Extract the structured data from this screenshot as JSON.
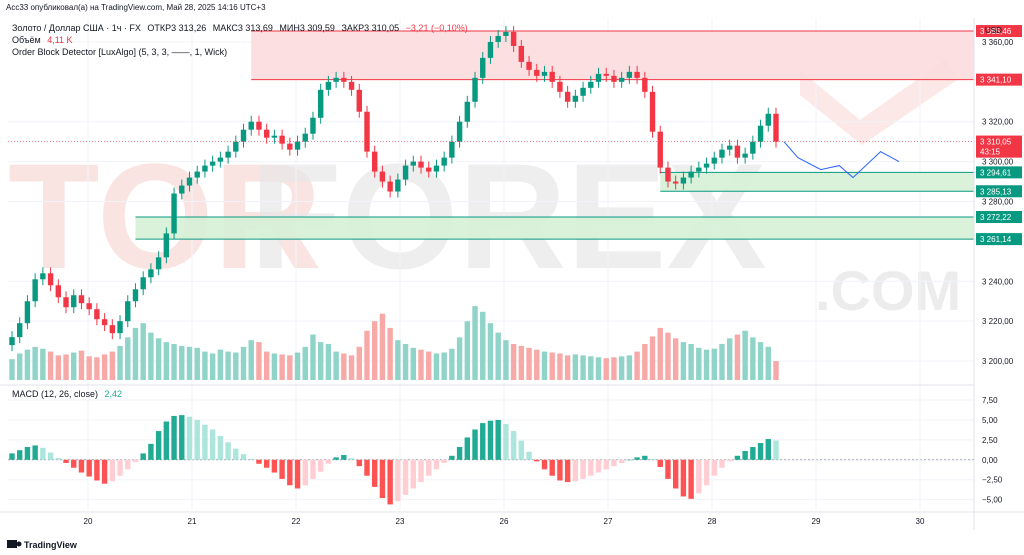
{
  "header": {
    "published_line": "Acc33 опубликовал(а) на TradingView.com, Май 28, 2025 14:16 UTC+3",
    "symbol": "Золото / Доллар США · 1ч · FX",
    "open": "ОТКР3 313,26",
    "high": "МАКС3 313,69",
    "low": "МИН3 309,59",
    "close": "ЗАКР3 310,05",
    "change": "−3,21 (−0,10%)",
    "volume_label": "Объём",
    "volume_value": "4,11 K",
    "indicator": "Order Block Detector [LuxAlgo] (5, 3, 3, ——, 1, Wick)"
  },
  "currency": "USD",
  "watermark": {
    "left": "TOR",
    "right": "FOREX",
    "suffix": ".COM"
  },
  "footer": {
    "brand": "TradingView"
  },
  "price_labels": [
    {
      "text": "3 365,46",
      "value": 3365.46,
      "color": "#f23645"
    },
    {
      "text": "3 341,10",
      "value": 3341.1,
      "color": "#f23645"
    },
    {
      "text": "3 310,05",
      "value": 3310.05,
      "color": "#f23645"
    },
    {
      "text": "43:15",
      "value": 3305.0,
      "color": "#f23645"
    },
    {
      "text": "3 294,61",
      "value": 3294.61,
      "color": "#089981"
    },
    {
      "text": "3 285,13",
      "value": 3285.13,
      "color": "#089981"
    },
    {
      "text": "3 272,22",
      "value": 3272.22,
      "color": "#089981"
    },
    {
      "text": "3 261,14",
      "value": 3261.14,
      "color": "#089981"
    }
  ],
  "macd": {
    "label": "MACD (12, 26, close)",
    "value": "2,42"
  },
  "colors": {
    "up": "#089981",
    "down": "#f23645",
    "vol_up": "#8fd3c9",
    "vol_down": "#f7a9a7",
    "hist_up_strong": "#22ab94",
    "hist_up_weak": "#ace5dc",
    "hist_down_strong": "#ff5252",
    "hist_down_weak": "#ffcdd2",
    "zone_red": "#fcdcdd",
    "zone_green": "#d6f0d6",
    "projection": "#2962ff"
  },
  "chart_data": {
    "type": "candlestick",
    "x_tick_labels": [
      "20",
      "21",
      "22",
      "23",
      "26",
      "27",
      "28",
      "29",
      "30"
    ],
    "price_axis": {
      "ticks": [
        3360,
        3320,
        3300,
        3280,
        3240,
        3220,
        3200
      ],
      "tick_labels": [
        "3 360,00",
        "3 320,00",
        "3 300,00",
        "3 280,00",
        "3 240,00",
        "3 220,00",
        "3 200,00"
      ],
      "range": [
        3188,
        3372
      ]
    },
    "macd_axis": {
      "ticks": [
        7.5,
        5,
        2.5,
        0,
        -2.5,
        -5
      ],
      "tick_labels": [
        "7,50",
        "5,00",
        "2,50",
        "0,00",
        "−2,50",
        "−5,00"
      ],
      "range": [
        -6.3,
        8.0
      ]
    },
    "order_blocks": [
      {
        "type": "bearish",
        "from_bar": 31,
        "top": 3365.46,
        "bottom": 3341.1
      },
      {
        "type": "bullish",
        "from_bar": 84,
        "top": 3294.61,
        "bottom": 3285.13
      },
      {
        "type": "bullish",
        "from_bar": 16,
        "top": 3272.22,
        "bottom": 3261.14
      }
    ],
    "closes": [
      3212,
      3219,
      3230,
      3241,
      3244,
      3238,
      3232,
      3227,
      3233,
      3229,
      3226,
      3221,
      3218,
      3214,
      3220,
      3230,
      3236,
      3242,
      3246,
      3252,
      3264,
      3284,
      3288,
      3292,
      3295,
      3298,
      3300,
      3302,
      3305,
      3310,
      3316,
      3320,
      3316,
      3312,
      3313,
      3309,
      3306,
      3310,
      3314,
      3322,
      3336,
      3340,
      3342,
      3340,
      3336,
      3325,
      3305,
      3295,
      3290,
      3285,
      3291,
      3298,
      3300,
      3297,
      3295,
      3298,
      3302,
      3310,
      3320,
      3330,
      3342,
      3352,
      3360,
      3363,
      3365,
      3358,
      3350,
      3346,
      3343,
      3345,
      3340,
      3335,
      3330,
      3333,
      3337,
      3340,
      3344,
      3343,
      3340,
      3342,
      3345,
      3342,
      3335,
      3315,
      3297,
      3290,
      3289,
      3292,
      3295,
      3297,
      3299,
      3302,
      3306,
      3308,
      3302,
      3304,
      3310,
      3318,
      3324,
      3310
    ],
    "volume_range": [
      0,
      95
    ],
    "volumes": [
      22,
      28,
      32,
      35,
      33,
      30,
      26,
      27,
      29,
      31,
      25,
      24,
      27,
      30,
      36,
      45,
      55,
      60,
      50,
      44,
      40,
      38,
      36,
      35,
      34,
      30,
      28,
      32,
      30,
      29,
      35,
      42,
      40,
      30,
      28,
      27,
      26,
      29,
      35,
      48,
      40,
      38,
      30,
      28,
      26,
      35,
      52,
      62,
      70,
      55,
      42,
      38,
      34,
      32,
      30,
      28,
      29,
      33,
      45,
      62,
      78,
      72,
      60,
      50,
      42,
      38,
      36,
      34,
      32,
      30,
      29,
      28,
      26,
      27,
      26,
      25,
      24,
      23,
      24,
      25,
      26,
      30,
      38,
      46,
      55,
      50,
      44,
      40,
      38,
      34,
      32,
      33,
      38,
      44,
      48,
      52,
      45,
      40,
      35,
      20
    ],
    "macd_hist": [
      0.8,
      1.2,
      1.6,
      1.8,
      1.5,
      0.9,
      0.2,
      -0.4,
      -1.0,
      -1.6,
      -2.1,
      -2.6,
      -3.0,
      -2.7,
      -2.0,
      -1.2,
      -0.3,
      0.8,
      2.0,
      3.6,
      4.8,
      5.5,
      5.6,
      5.4,
      5.0,
      4.4,
      3.8,
      3.0,
      2.2,
      1.4,
      0.7,
      0.1,
      -0.5,
      -1.0,
      -1.6,
      -2.4,
      -3.2,
      -3.6,
      -3.2,
      -2.4,
      -1.5,
      -0.5,
      0.3,
      0.6,
      0.2,
      -0.8,
      -2.0,
      -3.4,
      -4.8,
      -5.6,
      -5.2,
      -4.4,
      -3.6,
      -2.8,
      -2.0,
      -1.2,
      -0.4,
      0.5,
      1.6,
      2.8,
      3.8,
      4.6,
      4.9,
      5.0,
      4.5,
      3.6,
      2.4,
      1.0,
      -0.2,
      -1.2,
      -2.0,
      -2.6,
      -2.8,
      -2.7,
      -2.4,
      -2.0,
      -1.6,
      -1.2,
      -0.8,
      -0.4,
      0.0,
      0.3,
      0.5,
      0.1,
      -0.9,
      -2.4,
      -3.6,
      -4.6,
      -4.9,
      -4.2,
      -3.2,
      -2.0,
      -1.0,
      -0.2,
      0.5,
      1.1,
      1.6,
      2.1,
      2.6,
      2.42
    ],
    "projection_path": [
      [
        3310,
        0
      ],
      [
        3302,
        3
      ],
      [
        3296,
        8
      ],
      [
        3298,
        12
      ],
      [
        3292,
        15
      ],
      [
        3305,
        21
      ],
      [
        3300,
        25
      ]
    ]
  }
}
